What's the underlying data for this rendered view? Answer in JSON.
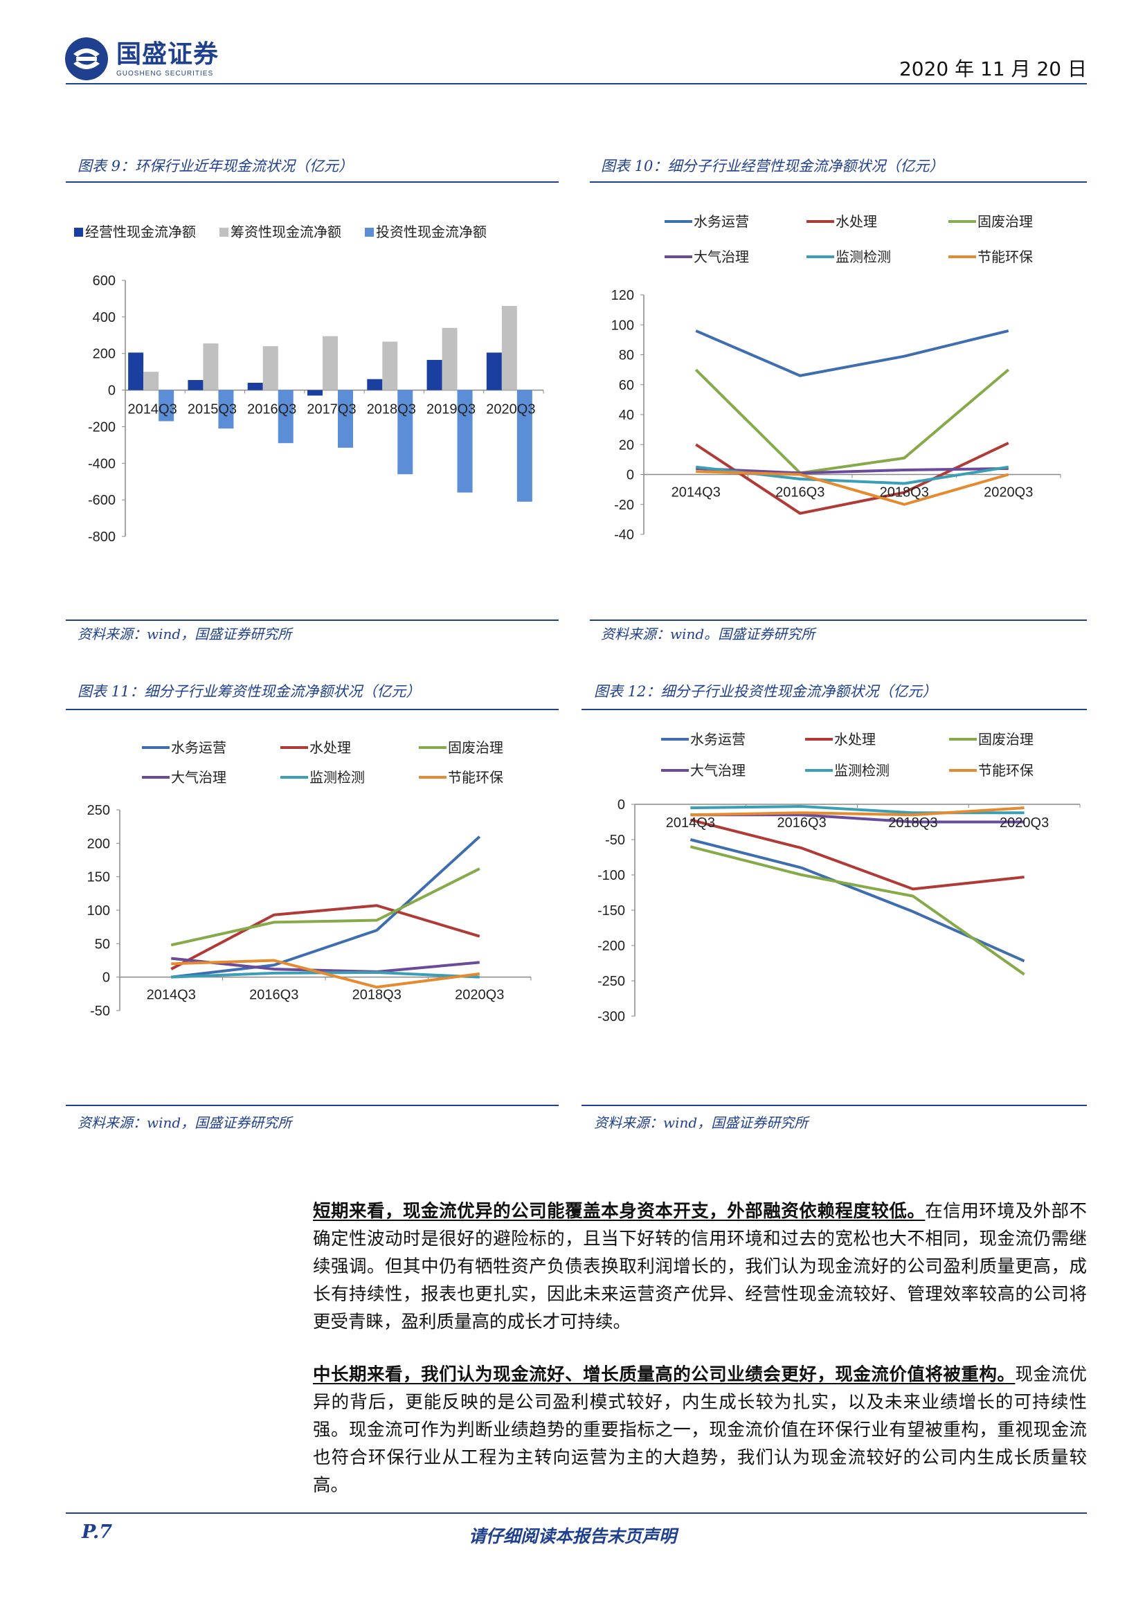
{
  "header": {
    "brand_name": "国盛证券",
    "brand_sub": "GUOSHENG SECURITIES",
    "date": "2020 年 11 月 20 日",
    "brand_color": "#1f3f8f"
  },
  "figures": [
    {
      "title": "图表 9：环保行业近年现金流状况（亿元）",
      "source": "资料来源：wind，国盛证券研究所"
    },
    {
      "title": "图表 10：细分子行业经营性现金流净额状况（亿元）",
      "source": "资料来源：wind。国盛证券研究所"
    },
    {
      "title": "图表 11：细分子行业筹资性现金流净额状况（亿元）",
      "source": "资料来源：wind，国盛证券研究所"
    },
    {
      "title": "图表 12：细分子行业投资性现金流净额状况（亿元）",
      "source": "资料来源：wind，国盛证券研究所"
    }
  ],
  "chart_data": [
    {
      "type": "bar",
      "categories": [
        "2014Q3",
        "2015Q3",
        "2016Q3",
        "2017Q3",
        "2018Q3",
        "2019Q3",
        "2020Q3"
      ],
      "series": [
        {
          "name": "经营性现金流净额",
          "values": [
            205,
            55,
            40,
            -30,
            60,
            165,
            205
          ],
          "color": "#1a3fa0"
        },
        {
          "name": "筹资性现金流净额",
          "values": [
            100,
            255,
            240,
            295,
            265,
            340,
            460
          ],
          "color": "#c0c0c0"
        },
        {
          "name": "投资性现金流净额",
          "values": [
            -170,
            -210,
            -290,
            -315,
            -460,
            -560,
            -610
          ],
          "color": "#5b8ed6"
        }
      ],
      "ylim": [
        -800,
        600
      ],
      "yticks": [
        600,
        400,
        200,
        0,
        -200,
        -400,
        -600,
        -800
      ],
      "legend": "top"
    },
    {
      "type": "line",
      "x": [
        "2014Q3",
        "2016Q3",
        "2018Q3",
        "2020Q3"
      ],
      "series": [
        {
          "name": "水务运营",
          "values": [
            96,
            66,
            79,
            96
          ],
          "color": "#3e6db0"
        },
        {
          "name": "水处理",
          "values": [
            20,
            -26,
            -12,
            21
          ],
          "color": "#b03a36"
        },
        {
          "name": "固废治理",
          "values": [
            70,
            1,
            11,
            70
          ],
          "color": "#86a94a"
        },
        {
          "name": "大气治理",
          "values": [
            4,
            1,
            3,
            4
          ],
          "color": "#6a4a9a"
        },
        {
          "name": "监测检测",
          "values": [
            5,
            -3,
            -6,
            5
          ],
          "color": "#3a9fb5"
        },
        {
          "name": "节能环保",
          "values": [
            2,
            0,
            -20,
            0
          ],
          "color": "#e58a2e"
        }
      ],
      "ylim": [
        -40,
        120
      ],
      "yticks": [
        120,
        100,
        80,
        60,
        40,
        20,
        0,
        -20,
        -40
      ],
      "legend": "top"
    },
    {
      "type": "line",
      "x": [
        "2014Q3",
        "2016Q3",
        "2018Q3",
        "2020Q3"
      ],
      "series": [
        {
          "name": "水务运营",
          "values": [
            0,
            18,
            70,
            210
          ],
          "color": "#3e6db0"
        },
        {
          "name": "水处理",
          "values": [
            12,
            93,
            107,
            61
          ],
          "color": "#b03a36"
        },
        {
          "name": "固废治理",
          "values": [
            48,
            82,
            85,
            162
          ],
          "color": "#86a94a"
        },
        {
          "name": "大气治理",
          "values": [
            28,
            12,
            8,
            22
          ],
          "color": "#6a4a9a"
        },
        {
          "name": "监测检测",
          "values": [
            0,
            6,
            7,
            0
          ],
          "color": "#3a9fb5"
        },
        {
          "name": "节能环保",
          "values": [
            20,
            25,
            -15,
            5
          ],
          "color": "#e58a2e"
        }
      ],
      "ylim": [
        -50,
        250
      ],
      "yticks": [
        250,
        200,
        150,
        100,
        50,
        0,
        -50
      ],
      "legend": "top"
    },
    {
      "type": "line",
      "x": [
        "2014Q3",
        "2016Q3",
        "2018Q3",
        "2020Q3"
      ],
      "series": [
        {
          "name": "水务运营",
          "values": [
            -50,
            -90,
            -152,
            -222
          ],
          "color": "#3e6db0"
        },
        {
          "name": "水处理",
          "values": [
            -22,
            -62,
            -120,
            -103
          ],
          "color": "#b03a36"
        },
        {
          "name": "固废治理",
          "values": [
            -60,
            -100,
            -130,
            -241
          ],
          "color": "#86a94a"
        },
        {
          "name": "大气治理",
          "values": [
            -15,
            -15,
            -25,
            -25
          ],
          "color": "#6a4a9a"
        },
        {
          "name": "监测检测",
          "values": [
            -5,
            -3,
            -12,
            -12
          ],
          "color": "#3a9fb5"
        },
        {
          "name": "节能环保",
          "values": [
            -15,
            -12,
            -15,
            -5
          ],
          "color": "#e58a2e"
        }
      ],
      "ylim": [
        -300,
        0
      ],
      "yticks": [
        0,
        -50,
        -100,
        -150,
        -200,
        -250,
        -300
      ],
      "legend": "top"
    }
  ],
  "paragraphs": [
    {
      "bold": "短期来看，现金流优异的公司能覆盖本身资本开支，外部融资依赖程度较低。",
      "text": "在信用环境及外部不确定性波动时是很好的避险标的，且当下好转的信用环境和过去的宽松也大不相同，现金流仍需继续强调。但其中仍有牺牲资产负债表换取利润增长的，我们认为现金流好的公司盈利质量更高，成长有持续性，报表也更扎实，因此未来运营资产优异、经营性现金流较好、管理效率较高的公司将更受青睐，盈利质量高的成长才可持续。"
    },
    {
      "bold": "中长期来看，我们认为现金流好、增长质量高的公司业绩会更好，现金流价值将被重构。",
      "text": "现金流优异的背后，更能反映的是公司盈利模式较好，内生成长较为扎实，以及未来业绩增长的可持续性强。现金流可作为判断业绩趋势的重要指标之一，现金流价值在环保行业有望被重构，重视现金流也符合环保行业从工程为主转向运营为主的大趋势，我们认为现金流较好的公司内生成长质量较高。"
    }
  ],
  "footer": {
    "page": "P.7",
    "disclaimer": "请仔细阅读本报告末页声明"
  }
}
